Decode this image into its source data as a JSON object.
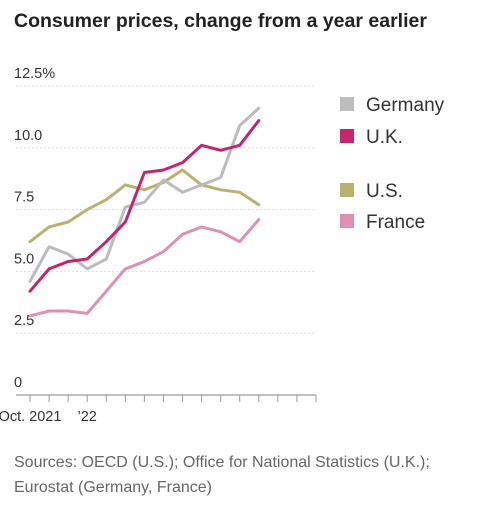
{
  "title": "Consumer prices, change from a year earlier",
  "source": "Sources: OECD (U.S.); Office for National Statistics (U.K.); Eurostat (Germany, France)",
  "chart_data": {
    "type": "line",
    "title": "Consumer prices, change from a year earlier",
    "ylim": [
      0,
      12.5
    ],
    "yticks": [
      0,
      2.5,
      5.0,
      7.5,
      10.0,
      12.5
    ],
    "ytick_labels": [
      "0",
      "2.5",
      "5.0",
      "7.5",
      "10.0",
      "12.5%"
    ],
    "x": [
      "2021-10",
      "2021-11",
      "2021-12",
      "2022-01",
      "2022-02",
      "2022-03",
      "2022-04",
      "2022-05",
      "2022-06",
      "2022-07",
      "2022-08",
      "2022-09",
      "2022-10",
      "2022-11",
      "2022-12",
      "2023-01"
    ],
    "xtick_labels": [
      {
        "x": "2021-10",
        "label": "Oct. 2021"
      },
      {
        "x": "2022-01",
        "label": "’22"
      }
    ],
    "grid": true,
    "legend_position": "right",
    "series": [
      {
        "name": "Germany",
        "color": "#bcbcbc",
        "values": [
          4.6,
          6.0,
          5.7,
          5.1,
          5.5,
          7.6,
          7.8,
          8.7,
          8.2,
          8.5,
          8.8,
          10.9,
          11.6,
          null,
          null,
          null
        ]
      },
      {
        "name": "U.K.",
        "color": "#c8246e",
        "values": [
          4.2,
          5.1,
          5.4,
          5.5,
          6.2,
          7.0,
          9.0,
          9.1,
          9.4,
          10.1,
          9.9,
          10.1,
          11.1,
          null,
          null,
          null
        ]
      },
      {
        "name": "U.S.",
        "color": "#b9b26f",
        "values": [
          6.2,
          6.8,
          7.0,
          7.5,
          7.9,
          8.5,
          8.3,
          8.6,
          9.1,
          8.5,
          8.3,
          8.2,
          7.7,
          null,
          null,
          null
        ]
      },
      {
        "name": "France",
        "color": "#e08fb5",
        "values": [
          3.2,
          3.4,
          3.4,
          3.3,
          4.2,
          5.1,
          5.4,
          5.8,
          6.5,
          6.8,
          6.6,
          6.2,
          7.1,
          null,
          null,
          null
        ]
      }
    ]
  }
}
